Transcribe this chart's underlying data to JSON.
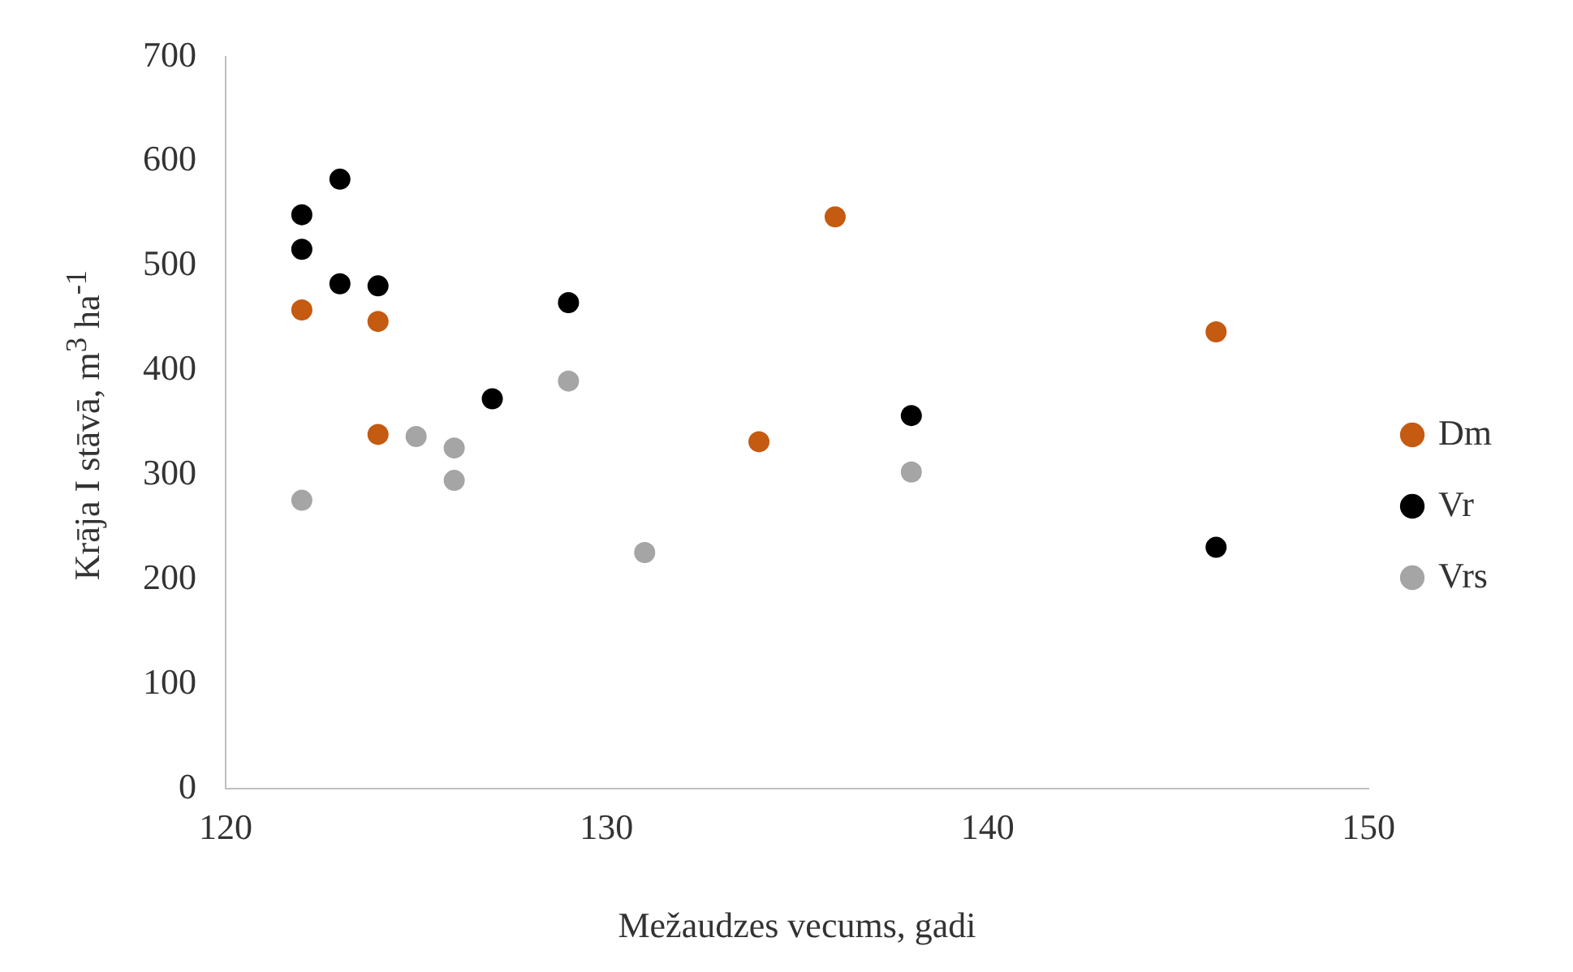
{
  "chart_data": {
    "type": "scatter",
    "xlabel": "Mežaudzes vecums, gadi",
    "ylabel": "Krāja I stāvā, m$^{3}$ ha$^{-1}$",
    "xlim": [
      120,
      150
    ],
    "xticks": [
      120,
      130,
      140,
      150
    ],
    "ylim": [
      0,
      700
    ],
    "yticks": [
      0,
      100,
      200,
      300,
      400,
      500,
      600,
      700
    ],
    "grid": false,
    "legend": "right",
    "marker": "circle",
    "series": [
      {
        "name": "Dm",
        "color": "#c55a11",
        "x": [
          122,
          124,
          124,
          134,
          136,
          146
        ],
        "values": [
          458,
          447,
          339,
          332,
          547,
          437
        ]
      },
      {
        "name": "Vr",
        "color": "#000000",
        "x": [
          122,
          123,
          122,
          123,
          124,
          129,
          127,
          138,
          146
        ],
        "values": [
          549,
          583,
          516,
          483,
          481,
          465,
          373,
          357,
          231
        ]
      },
      {
        "name": "Vrs",
        "color": "#a5a5a5",
        "x": [
          122,
          125,
          126,
          126,
          129,
          131,
          138
        ],
        "values": [
          276,
          337,
          326,
          295,
          390,
          226,
          303
        ]
      }
    ]
  }
}
